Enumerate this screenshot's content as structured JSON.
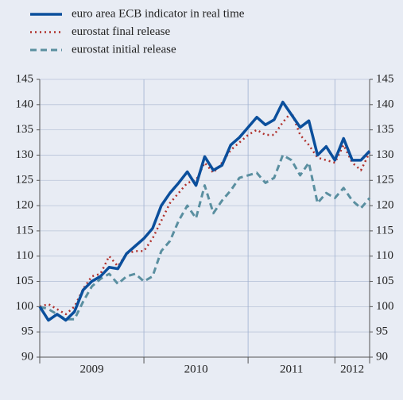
{
  "chart_data": {
    "type": "line",
    "xlim": [
      0,
      38
    ],
    "xticks": [
      0,
      12,
      24,
      34,
      38
    ],
    "xlabels": [
      {
        "value": 6,
        "label": "2009"
      },
      {
        "value": 18,
        "label": "2010"
      },
      {
        "value": 29,
        "label": "2011"
      },
      {
        "value": 36,
        "label": "2012"
      }
    ],
    "ylim": [
      90,
      145
    ],
    "yticks": [
      90,
      95,
      100,
      105,
      110,
      115,
      120,
      125,
      130,
      135,
      140,
      145
    ],
    "grid": true,
    "legend": "top-left",
    "series": [
      {
        "name": "euro area ECB indicator in real time",
        "color": "#0b4f9c",
        "style": "solid",
        "values": [
          100,
          97.3,
          98.5,
          97.3,
          99,
          103.3,
          105,
          106,
          107.8,
          107.5,
          110.5,
          112,
          113.5,
          115.5,
          120,
          122.5,
          124.5,
          126.7,
          124,
          129.7,
          127,
          128,
          132,
          133.5,
          135.5,
          137.5,
          136,
          137,
          140.5,
          138,
          135.5,
          136.8,
          130,
          131.7,
          129,
          133.3,
          129,
          129,
          130.8
        ]
      },
      {
        "name": "eurostat final release",
        "color": "#b0302b",
        "style": "dotted",
        "values": [
          100,
          100.5,
          99.5,
          98.5,
          100,
          103.5,
          106,
          106.5,
          110,
          108,
          110.5,
          111,
          111,
          113.5,
          117,
          120.5,
          122.5,
          124.5,
          125,
          128.5,
          126.5,
          128.5,
          131,
          132.5,
          134,
          135,
          134,
          134,
          136.5,
          138.5,
          134,
          132,
          129.5,
          129,
          128.5,
          132,
          128.5,
          127,
          130.5
        ]
      },
      {
        "name": "eurostat initial release",
        "color": "#5a8fa0",
        "style": "dashed",
        "values": [
          100,
          99.5,
          98.5,
          97.5,
          97.5,
          101,
          104,
          105.5,
          106.5,
          104.5,
          106,
          106.5,
          105,
          106,
          111,
          113,
          117,
          120,
          117.5,
          124,
          118.5,
          121,
          123,
          125.5,
          126,
          126.5,
          124.5,
          125.5,
          130,
          129,
          126,
          128.5,
          120.5,
          122.5,
          121.5,
          123.5,
          121,
          119.5,
          121.5
        ]
      }
    ]
  }
}
